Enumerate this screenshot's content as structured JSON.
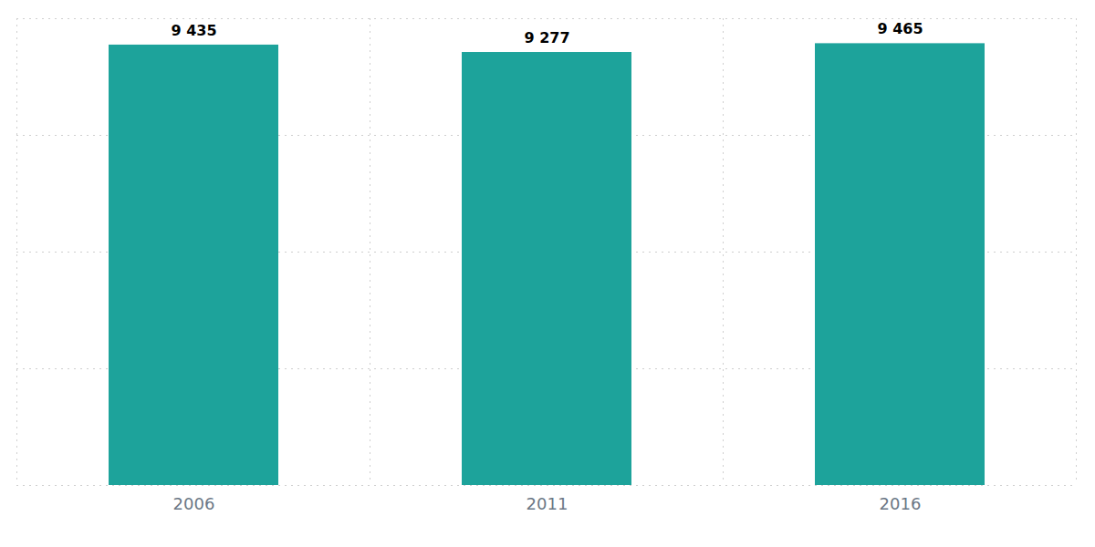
{
  "chart_data": {
    "type": "bar",
    "categories": [
      "2006",
      "2011",
      "2016"
    ],
    "values": [
      9435,
      9277,
      9465
    ],
    "value_labels": [
      "9 435",
      "9 277",
      "9 465"
    ],
    "color": "#1da39b",
    "ylim": [
      0,
      10000
    ],
    "yticks": [
      0,
      2500,
      5000,
      7500,
      10000
    ],
    "grid": true,
    "data_labels": true,
    "tick_labels": "x"
  }
}
